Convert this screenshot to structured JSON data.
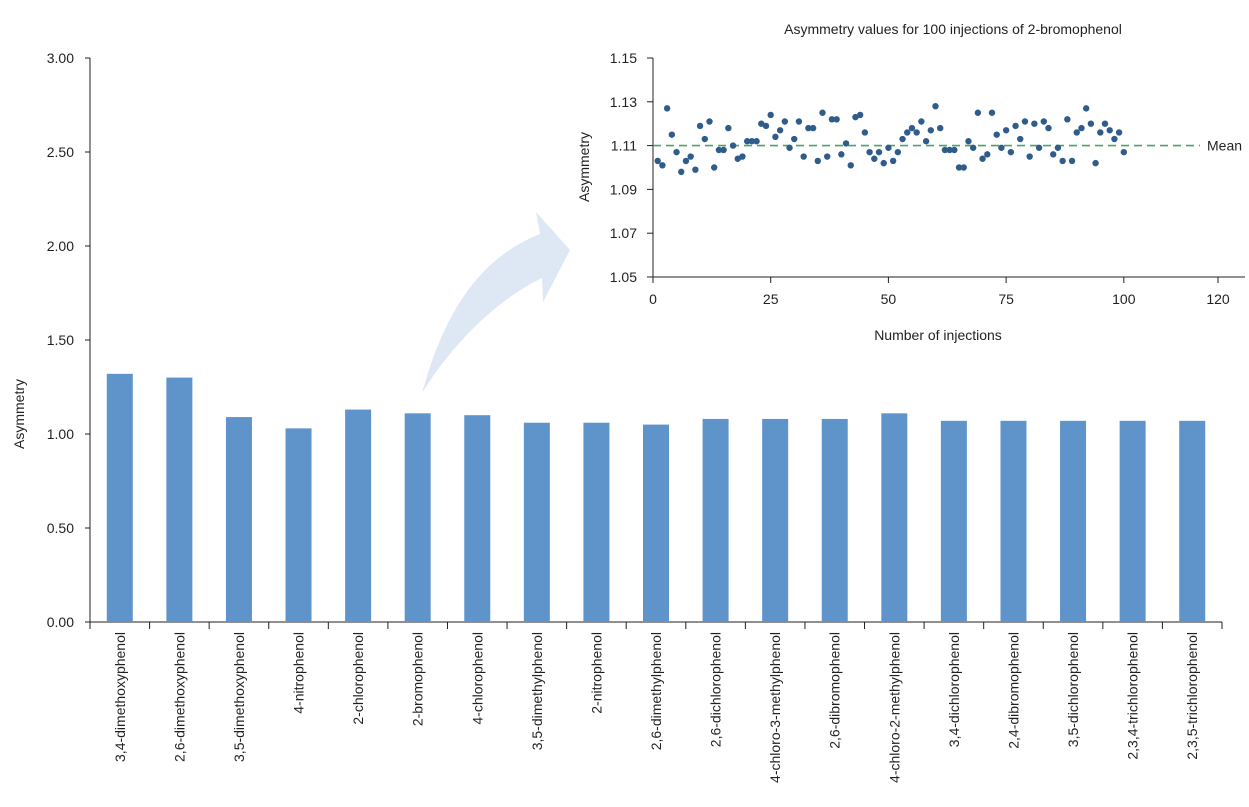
{
  "chart_data": [
    {
      "type": "bar",
      "ylabel": "Asymmetry",
      "xlabel": "",
      "ylim": [
        0,
        3.0
      ],
      "yticks": [
        "0.00",
        "0.50",
        "1.00",
        "1.50",
        "2.00",
        "2.50",
        "3.00"
      ],
      "grid": false,
      "bar_color": "#5f94cb",
      "categories": [
        "3,4-dimethoxyphenol",
        "2,6-dimethoxyphenol",
        "3,5-dimethoxyphenol",
        "4-nitrophenol",
        "2-chlorophenol",
        "2-bromophenol",
        "4-chlorophenol",
        "3,5-dimethylphenol",
        "2-nitrophenol",
        "2,6-dimethylphenol",
        "2,6-dichlorophenol",
        "4-chloro-3-methylphenol",
        "2,6-dibromophenol",
        "4-chloro-2-methylphenol",
        "3,4-dichlorophenol",
        "2,4-dibromophenol",
        "3,5-dichlorophenol",
        "2,3,4-trichlorophenol",
        "2,3,5-trichlorophenol"
      ],
      "values": [
        1.32,
        1.3,
        1.09,
        1.03,
        1.13,
        1.11,
        1.1,
        1.06,
        1.06,
        1.05,
        1.08,
        1.08,
        1.08,
        1.11,
        1.07,
        1.07,
        1.07,
        1.07,
        1.07
      ]
    },
    {
      "type": "scatter",
      "title": "Asymmetry values for 100 injections of 2-bromophenol",
      "xlabel": "Number of injections",
      "ylabel": "Asymmetry",
      "xlim": [
        0,
        120
      ],
      "ylim": [
        1.05,
        1.15
      ],
      "xticks": [
        "0",
        "25",
        "50",
        "75",
        "100",
        "120"
      ],
      "yticks": [
        "1.05",
        "1.07",
        "1.09",
        "1.11",
        "1.13",
        "1.15"
      ],
      "point_color": "#2f5c8a",
      "mean": {
        "value": 1.11,
        "label": "Mean",
        "color": "#4aa36b"
      },
      "x": [
        1,
        2,
        3,
        4,
        5,
        6,
        7,
        8,
        9,
        10,
        11,
        12,
        13,
        14,
        15,
        16,
        17,
        18,
        19,
        20,
        21,
        22,
        23,
        24,
        25,
        26,
        27,
        28,
        29,
        30,
        31,
        32,
        33,
        34,
        35,
        36,
        37,
        38,
        39,
        40,
        41,
        42,
        43,
        44,
        45,
        46,
        47,
        48,
        49,
        50,
        51,
        52,
        53,
        54,
        55,
        56,
        57,
        58,
        59,
        60,
        61,
        62,
        63,
        64,
        65,
        66,
        67,
        68,
        69,
        70,
        71,
        72,
        73,
        74,
        75,
        76,
        77,
        78,
        79,
        80,
        81,
        82,
        83,
        84,
        85,
        86,
        87,
        88,
        89,
        90,
        91,
        92,
        93,
        94,
        95,
        96,
        97,
        98,
        99,
        100
      ],
      "y": [
        1.103,
        1.101,
        1.127,
        1.115,
        1.107,
        1.098,
        1.103,
        1.105,
        1.099,
        1.119,
        1.113,
        1.121,
        1.1,
        1.108,
        1.108,
        1.118,
        1.11,
        1.104,
        1.105,
        1.112,
        1.112,
        1.112,
        1.12,
        1.119,
        1.124,
        1.114,
        1.117,
        1.121,
        1.109,
        1.113,
        1.121,
        1.105,
        1.118,
        1.118,
        1.103,
        1.125,
        1.105,
        1.122,
        1.122,
        1.106,
        1.111,
        1.101,
        1.123,
        1.124,
        1.116,
        1.107,
        1.104,
        1.107,
        1.102,
        1.109,
        1.103,
        1.107,
        1.113,
        1.116,
        1.118,
        1.116,
        1.121,
        1.112,
        1.117,
        1.128,
        1.118,
        1.108,
        1.108,
        1.108,
        1.1,
        1.1,
        1.112,
        1.109,
        1.125,
        1.104,
        1.106,
        1.125,
        1.115,
        1.109,
        1.117,
        1.107,
        1.119,
        1.113,
        1.121,
        1.105,
        1.12,
        1.109,
        1.121,
        1.118,
        1.106,
        1.109,
        1.103,
        1.122,
        1.103,
        1.116,
        1.118,
        1.127,
        1.12,
        1.102,
        1.116,
        1.12,
        1.117,
        1.113,
        1.116,
        1.107
      ]
    }
  ]
}
